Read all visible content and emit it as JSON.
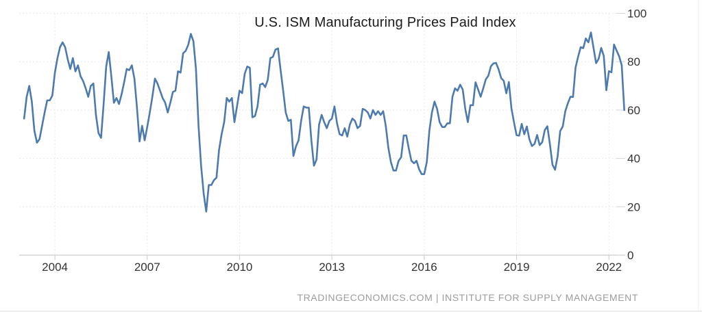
{
  "header": {
    "title": "U.S. ISM Manufacturing Prices Paid Index"
  },
  "footer": {
    "text": "TRADINGECONOMICS.COM | INSTITUTE FOR SUPPLY MANAGEMENT"
  },
  "colors": {
    "line": "#4d7aae",
    "grid": "#e8e8e8",
    "axis_line": "#c9c9c9",
    "tick_stub": "#d6d6d6",
    "tick_text": "#333333",
    "title_text": "#1b1b1b",
    "footer_text": "#9c9c9c",
    "divider": "#ececec",
    "background": "#ffffff"
  },
  "chart_data": {
    "type": "line",
    "title": "U.S. ISM Manufacturing Prices Paid Index",
    "xlabel": "",
    "ylabel": "",
    "grid": true,
    "legend": "none",
    "ylim": [
      0,
      100
    ],
    "xlim": [
      2002.84,
      2022.53
    ],
    "y_ticks": [
      0,
      20,
      40,
      60,
      80,
      100
    ],
    "x_tick_years": [
      2004,
      2007,
      2010,
      2013,
      2016,
      2019,
      2022
    ],
    "x_tick_labels": [
      "2004",
      "2007",
      "2010",
      "2013",
      "2016",
      "2019",
      "2022"
    ],
    "series": [
      {
        "name": "ISM Manufacturing Prices Paid",
        "frequency": "monthly",
        "start_year": 2003,
        "start_month": 1,
        "end_year": 2022,
        "end_month": 7,
        "values": [
          56.5,
          65.5,
          70.0,
          63.5,
          51.5,
          46.5,
          48.0,
          53.5,
          59.0,
          64.0,
          64.0,
          66.0,
          75.5,
          81.5,
          86.0,
          88.0,
          86.0,
          81.0,
          77.0,
          81.5,
          76.0,
          78.5,
          74.0,
          72.0,
          69.0,
          65.5,
          70.0,
          71.0,
          58.0,
          50.5,
          48.5,
          62.5,
          78.0,
          84.0,
          74.0,
          63.0,
          65.0,
          62.5,
          66.5,
          71.5,
          77.0,
          76.5,
          78.5,
          73.0,
          61.0,
          47.0,
          53.5,
          47.5,
          53.0,
          59.0,
          65.5,
          73.0,
          71.0,
          68.0,
          65.0,
          63.0,
          59.0,
          63.0,
          67.5,
          68.0,
          76.0,
          75.5,
          83.5,
          84.5,
          87.0,
          91.5,
          88.5,
          77.0,
          53.5,
          37.0,
          25.5,
          18.0,
          29.0,
          29.0,
          31.0,
          32.0,
          43.5,
          50.0,
          55.0,
          65.0,
          63.5,
          65.0,
          55.0,
          61.5,
          68.0,
          67.0,
          75.0,
          78.0,
          77.5,
          57.0,
          57.5,
          61.5,
          70.5,
          71.0,
          69.5,
          72.5,
          81.5,
          82.0,
          85.0,
          85.5,
          76.5,
          68.0,
          59.0,
          55.5,
          56.0,
          41.0,
          45.0,
          47.5,
          55.5,
          61.5,
          61.0,
          61.0,
          47.5,
          37.0,
          39.5,
          54.0,
          58.0,
          55.0,
          52.5,
          55.5,
          56.5,
          61.5,
          54.5,
          50.0,
          49.5,
          52.5,
          49.0,
          54.0,
          56.5,
          55.5,
          52.5,
          53.5,
          60.5,
          60.0,
          59.0,
          56.5,
          60.0,
          58.0,
          59.5,
          58.0,
          59.5,
          53.5,
          44.5,
          38.5,
          35.0,
          35.0,
          39.0,
          40.5,
          49.5,
          49.5,
          44.0,
          39.0,
          38.0,
          39.0,
          35.5,
          33.5,
          33.5,
          38.5,
          51.5,
          59.0,
          63.5,
          60.5,
          55.0,
          53.0,
          53.0,
          54.5,
          54.5,
          65.5,
          69.0,
          68.0,
          70.5,
          68.5,
          60.5,
          55.0,
          62.0,
          62.0,
          71.5,
          68.5,
          65.5,
          69.0,
          72.7,
          74.2,
          78.1,
          79.3,
          79.5,
          76.8,
          73.2,
          72.1,
          66.9,
          71.6,
          60.7,
          54.9,
          49.6,
          49.4,
          54.3,
          50.0,
          53.2,
          47.9,
          45.1,
          46.0,
          49.7,
          45.5,
          46.7,
          51.7,
          53.3,
          45.9,
          37.4,
          35.3,
          40.8,
          51.3,
          53.2,
          59.5,
          62.8,
          65.5,
          65.4,
          77.6,
          82.1,
          86.0,
          85.6,
          89.6,
          88.0,
          92.1,
          85.7,
          79.4,
          81.2,
          85.7,
          82.4,
          68.2,
          76.1,
          75.6,
          87.1,
          84.6,
          82.2,
          78.5,
          60.0
        ]
      }
    ]
  }
}
